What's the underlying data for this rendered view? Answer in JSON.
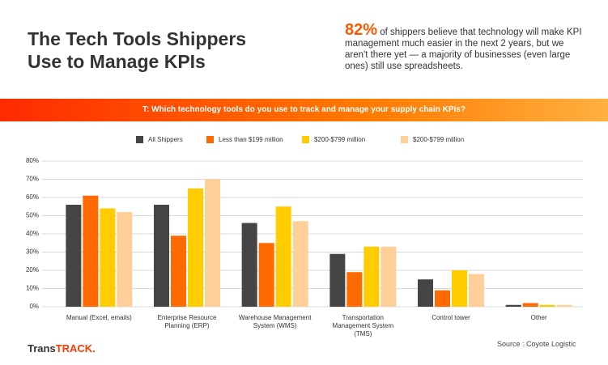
{
  "header": {
    "title": "The Tech Tools Shippers Use to Manage KPIs",
    "highlight": "82%",
    "text": "of shippers believe that technology will make KPI management much easier in the next 2 years, but we aren't there yet — a majority of businesses (even large ones) still use spreadsheets."
  },
  "chart_data": {
    "type": "bar",
    "title": "T: Which technology tools do you use to track and manage your supply chain KPIs?",
    "categories": [
      "Manual (Excel, emails)",
      "Enterprise Resource Planning (ERP)",
      "Warehouse Management System (WMS)",
      "Transportation Management System (TMS)",
      "Control tower",
      "Other"
    ],
    "series": [
      {
        "name": "All Shippers",
        "color": "#454545",
        "values": [
          56,
          56,
          46,
          29,
          15,
          1
        ]
      },
      {
        "name": "Less than $199 million",
        "color": "#ff6a00",
        "values": [
          61,
          39,
          35,
          19,
          9,
          2
        ]
      },
      {
        "name": "$200-$799 million",
        "color": "#ffcc00",
        "values": [
          54,
          65,
          55,
          33,
          20,
          1
        ]
      },
      {
        "name": "$200-$799 million",
        "color": "#ffcf9a",
        "values": [
          52,
          70,
          47,
          33,
          18,
          1
        ]
      }
    ],
    "ylim": [
      0,
      80
    ],
    "yticks": [
      {
        "value": 0,
        "label": "0%"
      },
      {
        "value": 10,
        "label": "10%"
      },
      {
        "value": 20,
        "label": "20%"
      },
      {
        "value": 30,
        "label": "30%"
      },
      {
        "value": 40,
        "label": "40%"
      },
      {
        "value": 50,
        "label": "50%"
      },
      {
        "value": 60,
        "label": "60%"
      },
      {
        "value": 70,
        "label": "70%"
      },
      {
        "value": 80,
        "label": "80%"
      }
    ],
    "grid": true,
    "legend": "top"
  },
  "footer": {
    "logo_part1": "Trans",
    "logo_part2": "TRACK.",
    "source": "Source : Coyote Logistic"
  }
}
